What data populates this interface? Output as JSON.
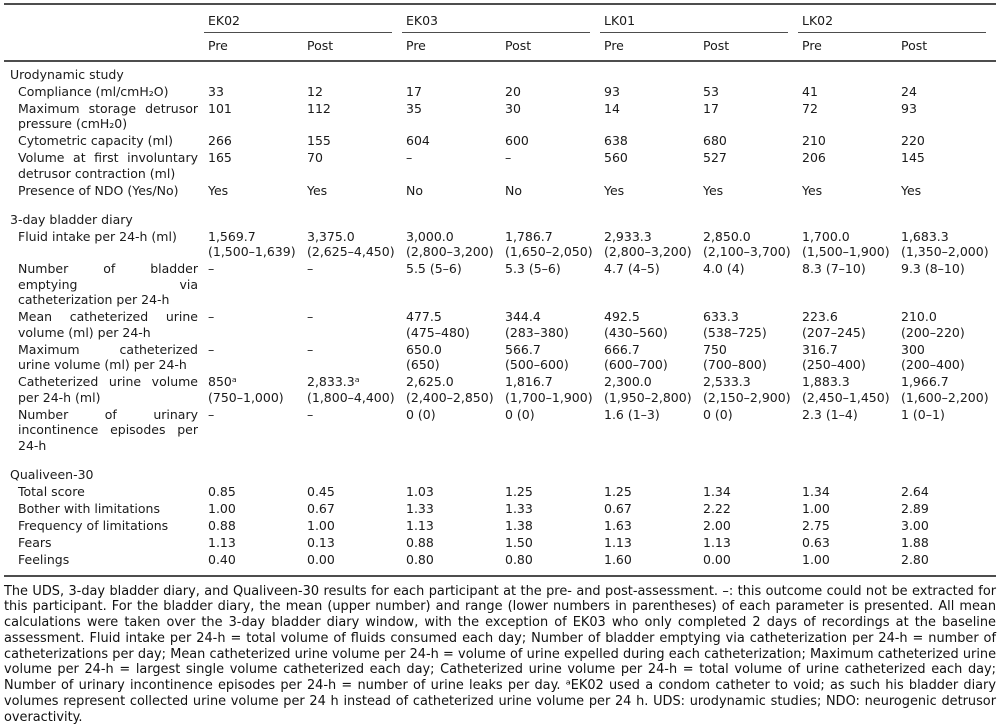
{
  "header": {
    "groups": [
      "EK02",
      "EK03",
      "LK01",
      "LK02"
    ],
    "sub": [
      "Pre",
      "Post",
      "Pre",
      "Post",
      "Pre",
      "Post",
      "Pre",
      "Post"
    ]
  },
  "sections": [
    {
      "title": "Urodynamic study",
      "rows": [
        {
          "label": "Compliance (ml/cmH₂O)",
          "values": [
            "33",
            "12",
            "17",
            "20",
            "93",
            "53",
            "41",
            "24"
          ]
        },
        {
          "label": "Maximum storage detrusor pressure (cmH₂0)",
          "values": [
            "101",
            "112",
            "35",
            "30",
            "14",
            "17",
            "72",
            "93"
          ]
        },
        {
          "label": "Cytometric capacity (ml)",
          "values": [
            "266",
            "155",
            "604",
            "600",
            "638",
            "680",
            "210",
            "220"
          ]
        },
        {
          "label": "Volume at first involuntary detrusor contraction (ml)",
          "values": [
            "165",
            "70",
            "–",
            "–",
            "560",
            "527",
            "206",
            "145"
          ]
        },
        {
          "label": "Presence of NDO (Yes/No)",
          "values": [
            "Yes",
            "Yes",
            "No",
            "No",
            "Yes",
            "Yes",
            "Yes",
            "Yes"
          ]
        }
      ]
    },
    {
      "title": "3-day bladder diary",
      "rows": [
        {
          "label": "Fluid intake per 24-h (ml)",
          "values": [
            "1,569.7\n(1,500–1,639)",
            "3,375.0\n(2,625–4,450)",
            "3,000.0\n(2,800–3,200)",
            "1,786.7\n(1,650–2,050)",
            "2,933.3\n(2,800–3,200)",
            "2,850.0\n(2,100–3,700)",
            "1,700.0\n(1,500–1,900)",
            "1,683.3\n(1,350–2,000)"
          ]
        },
        {
          "label": "Number of bladder emptying via catheterization per 24-h",
          "values": [
            "–",
            "–",
            "5.5 (5–6)",
            "5.3 (5–6)",
            "4.7 (4–5)",
            "4.0 (4)",
            "8.3 (7–10)",
            "9.3 (8–10)"
          ]
        },
        {
          "label": "Mean catheterized urine volume (ml) per 24-h",
          "values": [
            "–",
            "–",
            "477.5\n(475–480)",
            "344.4\n(283–380)",
            "492.5\n(430–560)",
            "633.3\n(538–725)",
            "223.6\n(207–245)",
            "210.0\n(200–220)"
          ]
        },
        {
          "label": "Maximum catheterized urine volume (ml) per 24-h",
          "values": [
            "–",
            "–",
            "650.0\n(650)",
            "566.7\n(500–600)",
            "666.7\n(600–700)",
            "750\n(700–800)",
            "316.7\n(250–400)",
            "300\n(200–400)"
          ]
        },
        {
          "label": "Catheterized urine volume per 24-h (ml)",
          "values": [
            "850ᵃ\n(750–1,000)",
            "2,833.3ᵃ\n(1,800–4,400)",
            "2,625.0\n(2,400–2,850)",
            "1,816.7\n(1,700–1,900)",
            "2,300.0\n(1,950–2,800)",
            "2,533.3\n(2,150–2,900)",
            "1,883.3\n(2,450–1,450)",
            "1,966.7\n(1,600–2,200)"
          ]
        },
        {
          "label": "Number of urinary incontinence episodes per 24-h",
          "values": [
            "–",
            "–",
            "0 (0)",
            "0 (0)",
            "1.6 (1–3)",
            "0 (0)",
            "2.3 (1–4)",
            "1 (0–1)"
          ]
        }
      ]
    },
    {
      "title": "Qualiveen-30",
      "rows": [
        {
          "label": "Total score",
          "values": [
            "0.85",
            "0.45",
            "1.03",
            "1.25",
            "1.25",
            "1.34",
            "1.34",
            "2.64"
          ]
        },
        {
          "label": "Bother with limitations",
          "values": [
            "1.00",
            "0.67",
            "1.33",
            "1.33",
            "0.67",
            "2.22",
            "1.00",
            "2.89"
          ]
        },
        {
          "label": "Frequency of limitations",
          "values": [
            "0.88",
            "1.00",
            "1.13",
            "1.38",
            "1.63",
            "2.00",
            "2.75",
            "3.00"
          ]
        },
        {
          "label": "Fears",
          "values": [
            "1.13",
            "0.13",
            "0.88",
            "1.50",
            "1.13",
            "1.13",
            "0.63",
            "1.88"
          ]
        },
        {
          "label": "Feelings",
          "values": [
            "0.40",
            "0.00",
            "0.80",
            "0.80",
            "1.60",
            "0.00",
            "1.00",
            "2.80"
          ]
        }
      ]
    }
  ],
  "footnote": "The UDS, 3-day bladder diary, and Qualiveen-30 results for each participant at the pre- and post-assessment. –: this outcome could not be extracted for this participant. For the bladder diary, the mean (upper number) and range (lower numbers in parentheses) of each parameter is presented. All mean calculations were taken over the 3-day bladder diary window, with the exception of EK03 who only completed 2 days of recordings at the baseline assessment. Fluid intake per 24-h = total volume of fluids consumed each day; Number of bladder emptying via catheterization per 24-h = number of catheterizations per day; Mean catheterized urine volume per 24-h = volume of urine expelled during each catheterization; Maximum catheterized urine volume per 24-h = largest single volume catheterized each day; Catheterized urine volume per 24-h = total volume of urine catheterized each day; Number of urinary incontinence episodes per 24-h = number of urine leaks per day. ᵃEK02 used a condom catheter to void; as such his bladder diary volumes represent collected urine volume per 24 h instead of catheterized urine volume per 24 h. UDS: urodynamic studies; NDO: neurogenic detrusor overactivity."
}
